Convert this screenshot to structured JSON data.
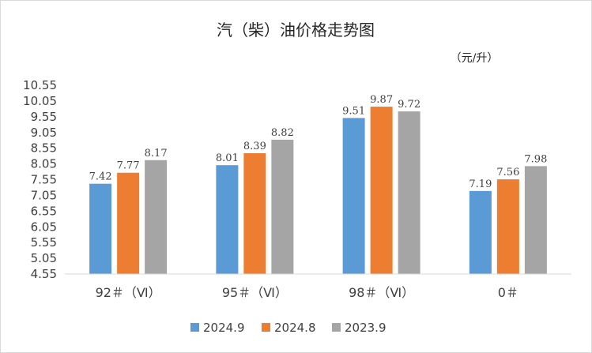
{
  "chart_data": {
    "type": "bar",
    "title": "汽（柴）油价格走势图",
    "unit_label": "（元/升）",
    "categories": [
      "92＃（Ⅵ）",
      "95＃（Ⅵ）",
      "98＃（Ⅵ）",
      "0＃"
    ],
    "series": [
      {
        "name": "2024.9",
        "values": [
          7.42,
          8.01,
          9.51,
          7.19
        ],
        "labels": [
          "7.42",
          "8.01",
          "9.51",
          "7.19"
        ],
        "color": "#5b9bd5"
      },
      {
        "name": "2024.8",
        "values": [
          7.77,
          8.39,
          9.87,
          7.56
        ],
        "labels": [
          "7.77",
          "8.39",
          "9.87",
          "7.56"
        ],
        "color": "#ed7d31"
      },
      {
        "name": "2023.9",
        "values": [
          8.17,
          8.82,
          9.72,
          7.98
        ],
        "labels": [
          "8.17",
          "8.82",
          "9.72",
          "7.98"
        ],
        "color": "#a5a5a5"
      }
    ],
    "ylim": [
      4.55,
      10.55
    ],
    "yticks": [
      "10.55",
      "10.05",
      "9.55",
      "9.05",
      "8.55",
      "8.05",
      "7.55",
      "7.05",
      "6.55",
      "6.05",
      "5.55",
      "5.05",
      "4.55"
    ],
    "grid": false,
    "legend_position": "bottom"
  }
}
